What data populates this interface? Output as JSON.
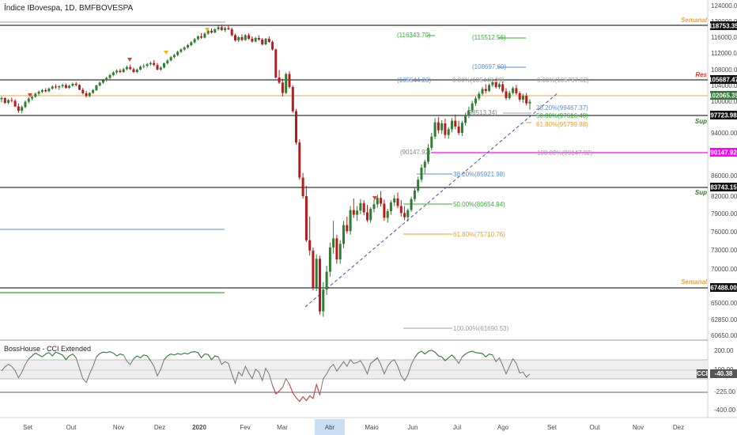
{
  "header": {
    "title": "Índice IBovespa, 1D, BMFBOVESPA"
  },
  "indicator": {
    "label": "BossHouse - CCI Extended",
    "value_badge_label": "CCI",
    "value_badge_value": "-40.38",
    "levels": [
      "200.00",
      "100.00",
      "-225.00",
      "-400.00"
    ]
  },
  "colors": {
    "up": "#2e7d32",
    "down": "#b71c1c",
    "level_black": "#000000",
    "level_orange": "#f0a23a",
    "magenta": "#ff00ff",
    "fib_green": "#2db52d",
    "fib_orange": "#f59d1c",
    "fib_blue": "#5b8fd9",
    "fib_gray": "#9e9e9e",
    "trend_blue": "#3f51b5",
    "timeline_highlight": "#c9ddf5"
  },
  "chart_data": [
    {
      "type": "candlestick",
      "title": "Índice IBovespa, 1D, BMFBOVESPA",
      "x_axis_labels": [
        "Set",
        "Out",
        "Nov",
        "Dez",
        "2020",
        "Fev",
        "Mar",
        "Abr",
        "Maio",
        "Jun",
        "Jul",
        "Ago",
        "Set",
        "Out",
        "Nov",
        "Dez"
      ],
      "y_axis_ticks": [
        "124000.00",
        "120000.00",
        "116000.00",
        "112000.00",
        "108000.00",
        "104000.00",
        "100000.00",
        "97000.00",
        "94000.00",
        "90000.00",
        "86000.00",
        "82000.00",
        "79000.00",
        "76000.00",
        "73000.00",
        "70000.00",
        "67500.00",
        "65000.00",
        "62850.00",
        "60650.00"
      ],
      "price_markers": [
        {
          "label": "118753.35",
          "value": 118753.35
        },
        {
          "label": "105687.47",
          "value": 105687.47
        },
        {
          "label": "102065.35",
          "value": 102065.35
        },
        {
          "label": "97723.98",
          "value": 97723.98
        },
        {
          "label": "90147.92",
          "value": 90147.92
        },
        {
          "label": "83743.15",
          "value": 83743.15
        },
        {
          "label": "67488.00",
          "value": 67488.0
        }
      ],
      "horizontal_levels": [
        {
          "value": 118753.35,
          "label": "Semanal"
        },
        {
          "value": 105687.47,
          "label": "Res"
        },
        {
          "value": 97723.98,
          "label": "Sup"
        },
        {
          "value": 83743.15,
          "label": "Sup"
        },
        {
          "value": 67488.0,
          "label": "Semanal"
        }
      ],
      "fib_labels": [
        "(116343.70)",
        "(115512.56)",
        "(108697.60)",
        "(105544.23)",
        "0.00%(105443.29)",
        "0.00%(105787.62)",
        "(98513.34)",
        "28.20%(99467.37)",
        "50.00%(97616.40)",
        "61.80%(95799.88)",
        "(90147.92)",
        "100.00%(90147.92)",
        "38.20%(85921.98)",
        "50.00%(80654.94)",
        "61.80%(75710.76)",
        "100.00%(61690.53)"
      ],
      "candles": [
        [
          100500,
          101200,
          99800,
          100800
        ],
        [
          100800,
          101000,
          99500,
          99700
        ],
        [
          99700,
          100600,
          99400,
          100300
        ],
        [
          100300,
          100900,
          99800,
          100100
        ],
        [
          100100,
          100500,
          98900,
          99000
        ],
        [
          99000,
          99600,
          97800,
          98200
        ],
        [
          98200,
          99200,
          97700,
          98900
        ],
        [
          98900,
          100200,
          98700,
          99900
        ],
        [
          99900,
          101000,
          99600,
          100700
        ],
        [
          100700,
          101500,
          100200,
          101100
        ],
        [
          101100,
          102200,
          100900,
          101900
        ],
        [
          101900,
          102700,
          101400,
          102400
        ],
        [
          102400,
          103100,
          102000,
          102800
        ],
        [
          102800,
          103300,
          102200,
          102500
        ],
        [
          102500,
          103500,
          102300,
          103200
        ],
        [
          103200,
          104000,
          102900,
          103700
        ],
        [
          103700,
          104300,
          103100,
          103500
        ],
        [
          103500,
          104100,
          102900,
          103800
        ],
        [
          103800,
          104500,
          103400,
          104100
        ],
        [
          104100,
          104500,
          103200,
          103400
        ],
        [
          103400,
          104200,
          103100,
          103900
        ],
        [
          103900,
          104700,
          103700,
          104400
        ],
        [
          104400,
          104900,
          103800,
          104100
        ],
        [
          104100,
          104300,
          102800,
          102900
        ],
        [
          102900,
          103400,
          101700,
          102000
        ],
        [
          102000,
          102600,
          100900,
          101300
        ],
        [
          101300,
          102300,
          101000,
          102100
        ],
        [
          102100,
          103100,
          101900,
          102800
        ],
        [
          102800,
          104200,
          102600,
          104000
        ],
        [
          104000,
          105000,
          103700,
          104700
        ],
        [
          104700,
          105600,
          104400,
          105300
        ],
        [
          105300,
          106200,
          105000,
          105900
        ],
        [
          105900,
          106900,
          105600,
          106600
        ],
        [
          106600,
          107600,
          106300,
          107300
        ],
        [
          107300,
          108100,
          106900,
          107700
        ],
        [
          107700,
          108200,
          107100,
          107400
        ],
        [
          107400,
          108400,
          107200,
          108100
        ],
        [
          108100,
          109000,
          107800,
          108600
        ],
        [
          108600,
          109200,
          107900,
          108100
        ],
        [
          108100,
          108500,
          107100,
          107400
        ],
        [
          107400,
          108300,
          107100,
          108000
        ],
        [
          108000,
          109000,
          107800,
          108700
        ],
        [
          108700,
          109400,
          108300,
          108900
        ],
        [
          108900,
          109600,
          108500,
          109300
        ],
        [
          109300,
          110000,
          108900,
          109600
        ],
        [
          109600,
          110300,
          108800,
          109100
        ],
        [
          109100,
          109600,
          107800,
          108000
        ],
        [
          108000,
          108800,
          107700,
          108500
        ],
        [
          108500,
          109700,
          108300,
          109500
        ],
        [
          109500,
          110500,
          109200,
          110200
        ],
        [
          110200,
          111300,
          110000,
          111000
        ],
        [
          111000,
          111800,
          110700,
          111500
        ],
        [
          111500,
          112600,
          111200,
          112300
        ],
        [
          112300,
          113200,
          112000,
          112900
        ],
        [
          112900,
          113700,
          112500,
          113400
        ],
        [
          113400,
          114300,
          113100,
          114000
        ],
        [
          114000,
          115000,
          113700,
          114700
        ],
        [
          114700,
          115800,
          114400,
          115500
        ],
        [
          115500,
          116500,
          115200,
          116200
        ],
        [
          116200,
          117000,
          115600,
          115900
        ],
        [
          115900,
          117200,
          115700,
          116900
        ],
        [
          116900,
          117900,
          116600,
          117600
        ],
        [
          117600,
          118200,
          116900,
          117200
        ],
        [
          117200,
          118300,
          117000,
          118000
        ],
        [
          118000,
          118900,
          117700,
          118500
        ],
        [
          118500,
          119200,
          117600,
          117800
        ],
        [
          117800,
          118600,
          117300,
          118300
        ],
        [
          118300,
          119000,
          117800,
          118000
        ],
        [
          118000,
          118400,
          116200,
          116500
        ],
        [
          116500,
          116900,
          114900,
          115200
        ],
        [
          115200,
          116300,
          114800,
          116000
        ],
        [
          116000,
          116700,
          115000,
          115300
        ],
        [
          115300,
          116800,
          115100,
          116500
        ],
        [
          116500,
          117000,
          115300,
          115600
        ],
        [
          115600,
          116200,
          114600,
          114900
        ],
        [
          114900,
          116100,
          114700,
          115800
        ],
        [
          115800,
          116500,
          115100,
          115400
        ],
        [
          115400,
          115800,
          113900,
          114200
        ],
        [
          114200,
          115800,
          114000,
          115600
        ],
        [
          115600,
          116200,
          114600,
          114800
        ],
        [
          114800,
          115200,
          112600,
          112900
        ],
        [
          112900,
          113100,
          105800,
          106000
        ],
        [
          106000,
          107900,
          104400,
          104700
        ],
        [
          104700,
          105700,
          101200,
          102100
        ],
        [
          102100,
          107300,
          101800,
          106900
        ],
        [
          106900,
          107600,
          103200,
          103600
        ],
        [
          103600,
          104000,
          97800,
          98100
        ],
        [
          98100,
          98500,
          91800,
          92200
        ],
        [
          92200,
          92800,
          85200,
          85600
        ],
        [
          85600,
          86500,
          81600,
          82000
        ],
        [
          82000,
          84000,
          74300,
          74600
        ],
        [
          74600,
          78500,
          72100,
          72900
        ],
        [
          72900,
          73400,
          66900,
          67300
        ],
        [
          67300,
          72300,
          66800,
          71600
        ],
        [
          71600,
          72100,
          63500,
          63900
        ],
        [
          63900,
          68100,
          63200,
          67000
        ],
        [
          67000,
          70500,
          66200,
          69600
        ],
        [
          69600,
          74200,
          68900,
          73400
        ],
        [
          73400,
          77800,
          72400,
          74900
        ],
        [
          74900,
          75500,
          70800,
          71500
        ],
        [
          71500,
          74600,
          70800,
          74000
        ],
        [
          74000,
          77800,
          73300,
          77100
        ],
        [
          77100,
          78500,
          75700,
          76100
        ],
        [
          76100,
          80300,
          75500,
          79600
        ],
        [
          79600,
          81600,
          78300,
          78800
        ],
        [
          78800,
          80300,
          77800,
          79500
        ],
        [
          79500,
          81500,
          78900,
          80800
        ],
        [
          80800,
          81300,
          78700,
          79200
        ],
        [
          79200,
          80500,
          77600,
          77900
        ],
        [
          77900,
          80100,
          77500,
          79800
        ],
        [
          79800,
          81400,
          79200,
          80600
        ],
        [
          80600,
          82300,
          80000,
          81700
        ],
        [
          81700,
          83000,
          80200,
          80700
        ],
        [
          80700,
          81400,
          77800,
          78300
        ],
        [
          78300,
          79800,
          77500,
          79400
        ],
        [
          79400,
          81300,
          78800,
          80900
        ],
        [
          80900,
          82200,
          80300,
          81600
        ],
        [
          81600,
          82700,
          79900,
          80300
        ],
        [
          80300,
          81300,
          78500,
          79100
        ],
        [
          79100,
          80300,
          77900,
          78400
        ],
        [
          78400,
          79900,
          77700,
          79600
        ],
        [
          79600,
          81900,
          79300,
          81500
        ],
        [
          81500,
          83700,
          81100,
          83100
        ],
        [
          83100,
          85800,
          82700,
          85200
        ],
        [
          85200,
          88100,
          84700,
          87500
        ],
        [
          87500,
          89000,
          86400,
          88600
        ],
        [
          88600,
          91900,
          88200,
          91200
        ],
        [
          91200,
          94000,
          90700,
          93300
        ],
        [
          93300,
          96800,
          92800,
          96000
        ],
        [
          96000,
          97000,
          93900,
          94500
        ],
        [
          94500,
          96400,
          93800,
          95800
        ],
        [
          95800,
          96700,
          93000,
          93600
        ],
        [
          93600,
          95100,
          92900,
          94700
        ],
        [
          94700,
          96800,
          94100,
          96300
        ],
        [
          96300,
          97500,
          94700,
          95200
        ],
        [
          95200,
          96300,
          93600,
          94000
        ],
        [
          94000,
          96300,
          93400,
          95900
        ],
        [
          95900,
          97800,
          95400,
          97300
        ],
        [
          97300,
          99000,
          96800,
          98300
        ],
        [
          98300,
          100100,
          97900,
          99600
        ],
        [
          99600,
          101200,
          99100,
          100700
        ],
        [
          100700,
          102500,
          100200,
          101900
        ],
        [
          101900,
          103600,
          101500,
          103100
        ],
        [
          103100,
          104300,
          102000,
          102600
        ],
        [
          102600,
          104500,
          102300,
          104100
        ],
        [
          104100,
          105300,
          103600,
          104800
        ],
        [
          104800,
          105700,
          103200,
          103600
        ],
        [
          103600,
          104700,
          103100,
          104300
        ],
        [
          104300,
          105000,
          102100,
          102500
        ],
        [
          102500,
          103300,
          100300,
          100800
        ],
        [
          100800,
          102600,
          100400,
          102100
        ],
        [
          102100,
          103700,
          101700,
          103300
        ],
        [
          103300,
          104100,
          101600,
          102000
        ],
        [
          102000,
          102500,
          99900,
          100400
        ],
        [
          100400,
          101900,
          99700,
          101400
        ],
        [
          101400,
          102100,
          99200,
          99600
        ],
        [
          99600,
          100500,
          98400,
          99900
        ]
      ],
      "indicator_values": [
        -8,
        35,
        62,
        40,
        -5,
        -80,
        -20,
        60,
        120,
        150,
        180,
        160,
        140,
        170,
        185,
        150,
        190,
        175,
        160,
        110,
        150,
        170,
        130,
        20,
        -90,
        -130,
        -40,
        40,
        140,
        175,
        190,
        185,
        195,
        180,
        150,
        170,
        160,
        95,
        60,
        120,
        150,
        130,
        160,
        150,
        100,
        40,
        -60,
        10,
        110,
        150,
        170,
        160,
        175,
        165,
        180,
        170,
        190,
        195,
        185,
        130,
        170,
        165,
        110,
        150,
        140,
        60,
        90,
        70,
        -40,
        -140,
        -20,
        -60,
        40,
        -30,
        -90,
        10,
        -20,
        -110,
        20,
        -40,
        -160,
        -250,
        -220,
        -180,
        -90,
        -150,
        -240,
        -290,
        -330,
        -280,
        -320,
        -270,
        -300,
        -150,
        -260,
        -90,
        -40,
        30,
        60,
        -10,
        40,
        90,
        40,
        110,
        70,
        80,
        100,
        40,
        -40,
        70,
        100,
        130,
        60,
        -40,
        40,
        90,
        110,
        40,
        -60,
        -110,
        -50,
        60,
        130,
        180,
        200,
        170,
        200,
        210,
        190,
        150,
        140,
        100,
        130,
        160,
        120,
        70,
        140,
        170,
        190,
        200,
        185,
        180,
        175,
        140,
        170,
        160,
        90,
        130,
        50,
        -40,
        40,
        120,
        70,
        -30,
        -20,
        -75,
        -40
      ]
    }
  ]
}
